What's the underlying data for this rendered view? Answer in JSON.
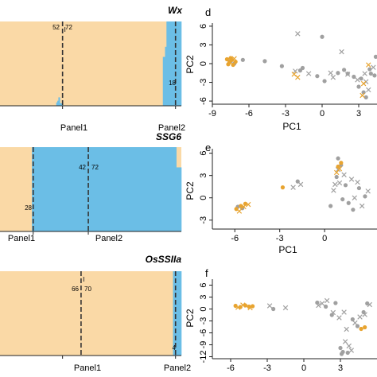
{
  "chart_data": [
    {
      "type": "bar",
      "title": "Wx",
      "colors": {
        "a": "#fad9a6",
        "b": "#6bbee6"
      },
      "x_labels": [
        "Panel1",
        "Panel2"
      ],
      "annotations": [
        "52",
        "72",
        "18"
      ],
      "segments_b_fraction": [
        {
          "from": 0.0,
          "to": 0.31,
          "value": 0.0
        },
        {
          "from": 0.31,
          "to": 0.316,
          "value": 0.04
        },
        {
          "from": 0.316,
          "to": 0.322,
          "value": 0.06
        },
        {
          "from": 0.322,
          "to": 0.33,
          "value": 0.1
        },
        {
          "from": 0.33,
          "to": 0.347,
          "value": 0.03
        },
        {
          "from": 0.347,
          "to": 0.898,
          "value": 0.0
        },
        {
          "from": 0.898,
          "to": 0.91,
          "value": 0.58
        },
        {
          "from": 0.91,
          "to": 0.918,
          "value": 0.7
        },
        {
          "from": 0.918,
          "to": 1.0,
          "value": 1.0
        }
      ]
    },
    {
      "type": "bar",
      "title": "SSG6",
      "colors": {
        "a": "#fad9a6",
        "b": "#6bbee6"
      },
      "x_labels": [
        "Panel1",
        "Panel2"
      ],
      "annotations": [
        "42",
        "72",
        "28"
      ],
      "segments_b_fraction": [
        {
          "from": 0.0,
          "to": 0.176,
          "value": 0.0
        },
        {
          "from": 0.176,
          "to": 0.972,
          "value": 1.0
        },
        {
          "from": 0.972,
          "to": 1.0,
          "value": 0.76
        }
      ]
    },
    {
      "type": "bar",
      "title": "OsSSIIa",
      "colors": {
        "a": "#fad9a6",
        "b": "#6bbee6"
      },
      "x_labels": [
        "Panel1",
        "Panel2"
      ],
      "annotations": [
        "66",
        "70",
        "4"
      ],
      "segments_b_fraction": [
        {
          "from": 0.0,
          "to": 0.954,
          "value": 0.0
        },
        {
          "from": 0.954,
          "to": 1.0,
          "value": 1.0
        }
      ]
    },
    {
      "type": "scatter",
      "panel": "d",
      "xlabel": "PC1",
      "ylabel": "PC2",
      "xlim": [
        -9,
        4.5
      ],
      "ylim": [
        -6.5,
        6.5
      ],
      "xticks": [
        "-9",
        "-6",
        "-3",
        "0",
        "3"
      ],
      "yticks": [
        "-6",
        "-3",
        "0",
        "3",
        "6"
      ],
      "series": [
        {
          "marker": "circle",
          "color": "#a0a0a0",
          "points": [
            [
              -7.5,
              0.4
            ],
            [
              -7.2,
              0.0
            ],
            [
              -6.5,
              0.6
            ],
            [
              -4.7,
              0.4
            ],
            [
              -3.3,
              -0.4
            ],
            [
              -1.6,
              -0.7
            ],
            [
              -1.8,
              -1.1
            ],
            [
              -0.4,
              -2.0
            ],
            [
              0.2,
              -2.8
            ],
            [
              0.0,
              4.3
            ],
            [
              1.3,
              -1.5
            ],
            [
              1.8,
              -1.0
            ],
            [
              2.1,
              -1.6
            ],
            [
              2.6,
              -2.1
            ],
            [
              3.0,
              -3.7
            ],
            [
              3.4,
              -4.6
            ],
            [
              3.6,
              -5.4
            ],
            [
              4.0,
              -1.6
            ],
            [
              4.3,
              -1.9
            ],
            [
              4.4,
              1.1
            ],
            [
              3.9,
              -0.9
            ],
            [
              3.2,
              -2.4
            ]
          ]
        },
        {
          "marker": "x",
          "color": "#a0a0a0",
          "points": [
            [
              -2.0,
              4.8
            ],
            [
              -2.2,
              -1.2
            ],
            [
              -1.1,
              -1.6
            ],
            [
              0.7,
              -1.5
            ],
            [
              0.9,
              -2.2
            ],
            [
              1.6,
              1.9
            ],
            [
              2.1,
              -1.7
            ],
            [
              2.9,
              -2.6
            ],
            [
              3.6,
              -2.9
            ],
            [
              3.8,
              -4.2
            ],
            [
              4.2,
              -0.6
            ],
            [
              3.5,
              -1.6
            ]
          ]
        },
        {
          "marker": "circle",
          "color": "#e8a430",
          "points": [
            [
              -7.8,
              0.7
            ],
            [
              -7.6,
              0.2
            ],
            [
              -7.4,
              0.6
            ],
            [
              -7.3,
              -0.2
            ],
            [
              -7.1,
              0.3
            ],
            [
              -7.7,
              -0.1
            ],
            [
              -7.5,
              0.9
            ]
          ]
        },
        {
          "marker": "x",
          "color": "#e8a430",
          "points": [
            [
              -7.6,
              0.4
            ],
            [
              -7.2,
              0.8
            ],
            [
              -2.3,
              -1.7
            ],
            [
              -2.0,
              -2.2
            ],
            [
              3.8,
              -0.2
            ],
            [
              3.4,
              -3.2
            ],
            [
              3.3,
              -5.1
            ]
          ]
        }
      ]
    },
    {
      "type": "scatter",
      "panel": "e",
      "xlabel": "PC1",
      "ylabel": "PC2",
      "xlim": [
        -7.5,
        3.5
      ],
      "ylim": [
        -4.2,
        6.6
      ],
      "xticks": [
        "-6",
        "-3",
        "0"
      ],
      "yticks": [
        "-3",
        "0",
        "3",
        "6"
      ],
      "series": [
        {
          "marker": "circle",
          "color": "#a0a0a0",
          "points": [
            [
              -5.8,
              -1.2
            ],
            [
              -5.5,
              -1.4
            ],
            [
              -1.8,
              2.2
            ],
            [
              0.4,
              -1.1
            ],
            [
              0.8,
              2.8
            ],
            [
              1.1,
              4.4
            ],
            [
              1.4,
              1.7
            ],
            [
              1.6,
              -0.7
            ],
            [
              1.9,
              -1.6
            ],
            [
              2.3,
              1.3
            ],
            [
              2.7,
              0.2
            ],
            [
              0.9,
              5.3
            ],
            [
              1.2,
              -0.2
            ]
          ]
        },
        {
          "marker": "x",
          "color": "#a0a0a0",
          "points": [
            [
              -2.1,
              1.4
            ],
            [
              -1.6,
              1.8
            ],
            [
              0.6,
              1.0
            ],
            [
              0.9,
              3.8
            ],
            [
              1.3,
              3.1
            ],
            [
              1.8,
              2.5
            ],
            [
              2.2,
              2.1
            ],
            [
              2.5,
              -1.1
            ],
            [
              2.9,
              0.9
            ],
            [
              1.0,
              2.0
            ],
            [
              0.7,
              1.8
            ],
            [
              2.0,
              0.0
            ]
          ]
        },
        {
          "marker": "circle",
          "color": "#e8a430",
          "points": [
            [
              -5.9,
              -1.5
            ],
            [
              -5.6,
              -1.1
            ],
            [
              -5.3,
              -0.8
            ],
            [
              -2.8,
              1.4
            ],
            [
              1.1,
              4.7
            ],
            [
              0.9,
              4.2
            ]
          ]
        },
        {
          "marker": "x",
          "color": "#e8a430",
          "points": [
            [
              -5.7,
              -1.8
            ],
            [
              -5.4,
              -1.2
            ],
            [
              -5.1,
              -0.9
            ],
            [
              1.0,
              3.9
            ],
            [
              0.8,
              3.4
            ]
          ]
        }
      ]
    },
    {
      "type": "scatter",
      "panel": "f",
      "xlabel": "",
      "ylabel": "PC2",
      "xlim": [
        -7.5,
        6
      ],
      "ylim": [
        -12.5,
        7.5
      ],
      "xticks": [
        "-6",
        "-3",
        "0",
        "3"
      ],
      "yticks": [
        "-12",
        "-9",
        "-6",
        "-3",
        "0",
        "3",
        "6"
      ],
      "series": [
        {
          "marker": "circle",
          "color": "#a0a0a0",
          "points": [
            [
              -2.5,
              0.0
            ],
            [
              1.1,
              1.6
            ],
            [
              1.8,
              0.6
            ],
            [
              2.3,
              -1.5
            ],
            [
              2.6,
              1.5
            ],
            [
              3.0,
              -9.8
            ],
            [
              3.2,
              -10.8
            ],
            [
              3.1,
              -11.3
            ],
            [
              3.6,
              -11.0
            ],
            [
              4.4,
              -4.3
            ],
            [
              4.9,
              -0.8
            ],
            [
              5.2,
              1.4
            ],
            [
              4.0,
              -2.6
            ]
          ]
        },
        {
          "marker": "x",
          "color": "#a0a0a0",
          "points": [
            [
              -2.8,
              0.8
            ],
            [
              -1.5,
              0.3
            ],
            [
              1.2,
              0.9
            ],
            [
              1.5,
              1.4
            ],
            [
              1.9,
              2.1
            ],
            [
              2.4,
              -0.9
            ],
            [
              2.9,
              -2.2
            ],
            [
              3.4,
              -8.2
            ],
            [
              3.7,
              -9.3
            ],
            [
              3.9,
              -10.4
            ],
            [
              4.2,
              -3.5
            ],
            [
              4.6,
              -2.0
            ],
            [
              5.4,
              1.1
            ],
            [
              5.0,
              -1.4
            ],
            [
              3.3,
              -0.8
            ],
            [
              3.5,
              -5.1
            ]
          ]
        },
        {
          "marker": "circle",
          "color": "#e8a430",
          "points": [
            [
              -5.6,
              0.8
            ],
            [
              -5.2,
              0.5
            ],
            [
              -4.8,
              0.9
            ],
            [
              -4.5,
              0.6
            ],
            [
              -4.2,
              0.7
            ],
            [
              4.7,
              -5.0
            ],
            [
              5.0,
              -4.6
            ]
          ]
        },
        {
          "marker": "x",
          "color": "#e8a430",
          "points": [
            [
              -5.4,
              0.4
            ],
            [
              -5.0,
              1.0
            ],
            [
              -4.4,
              0.3
            ]
          ]
        }
      ]
    }
  ],
  "panel_letters": {
    "d": "d",
    "e": "e",
    "f": "f"
  }
}
